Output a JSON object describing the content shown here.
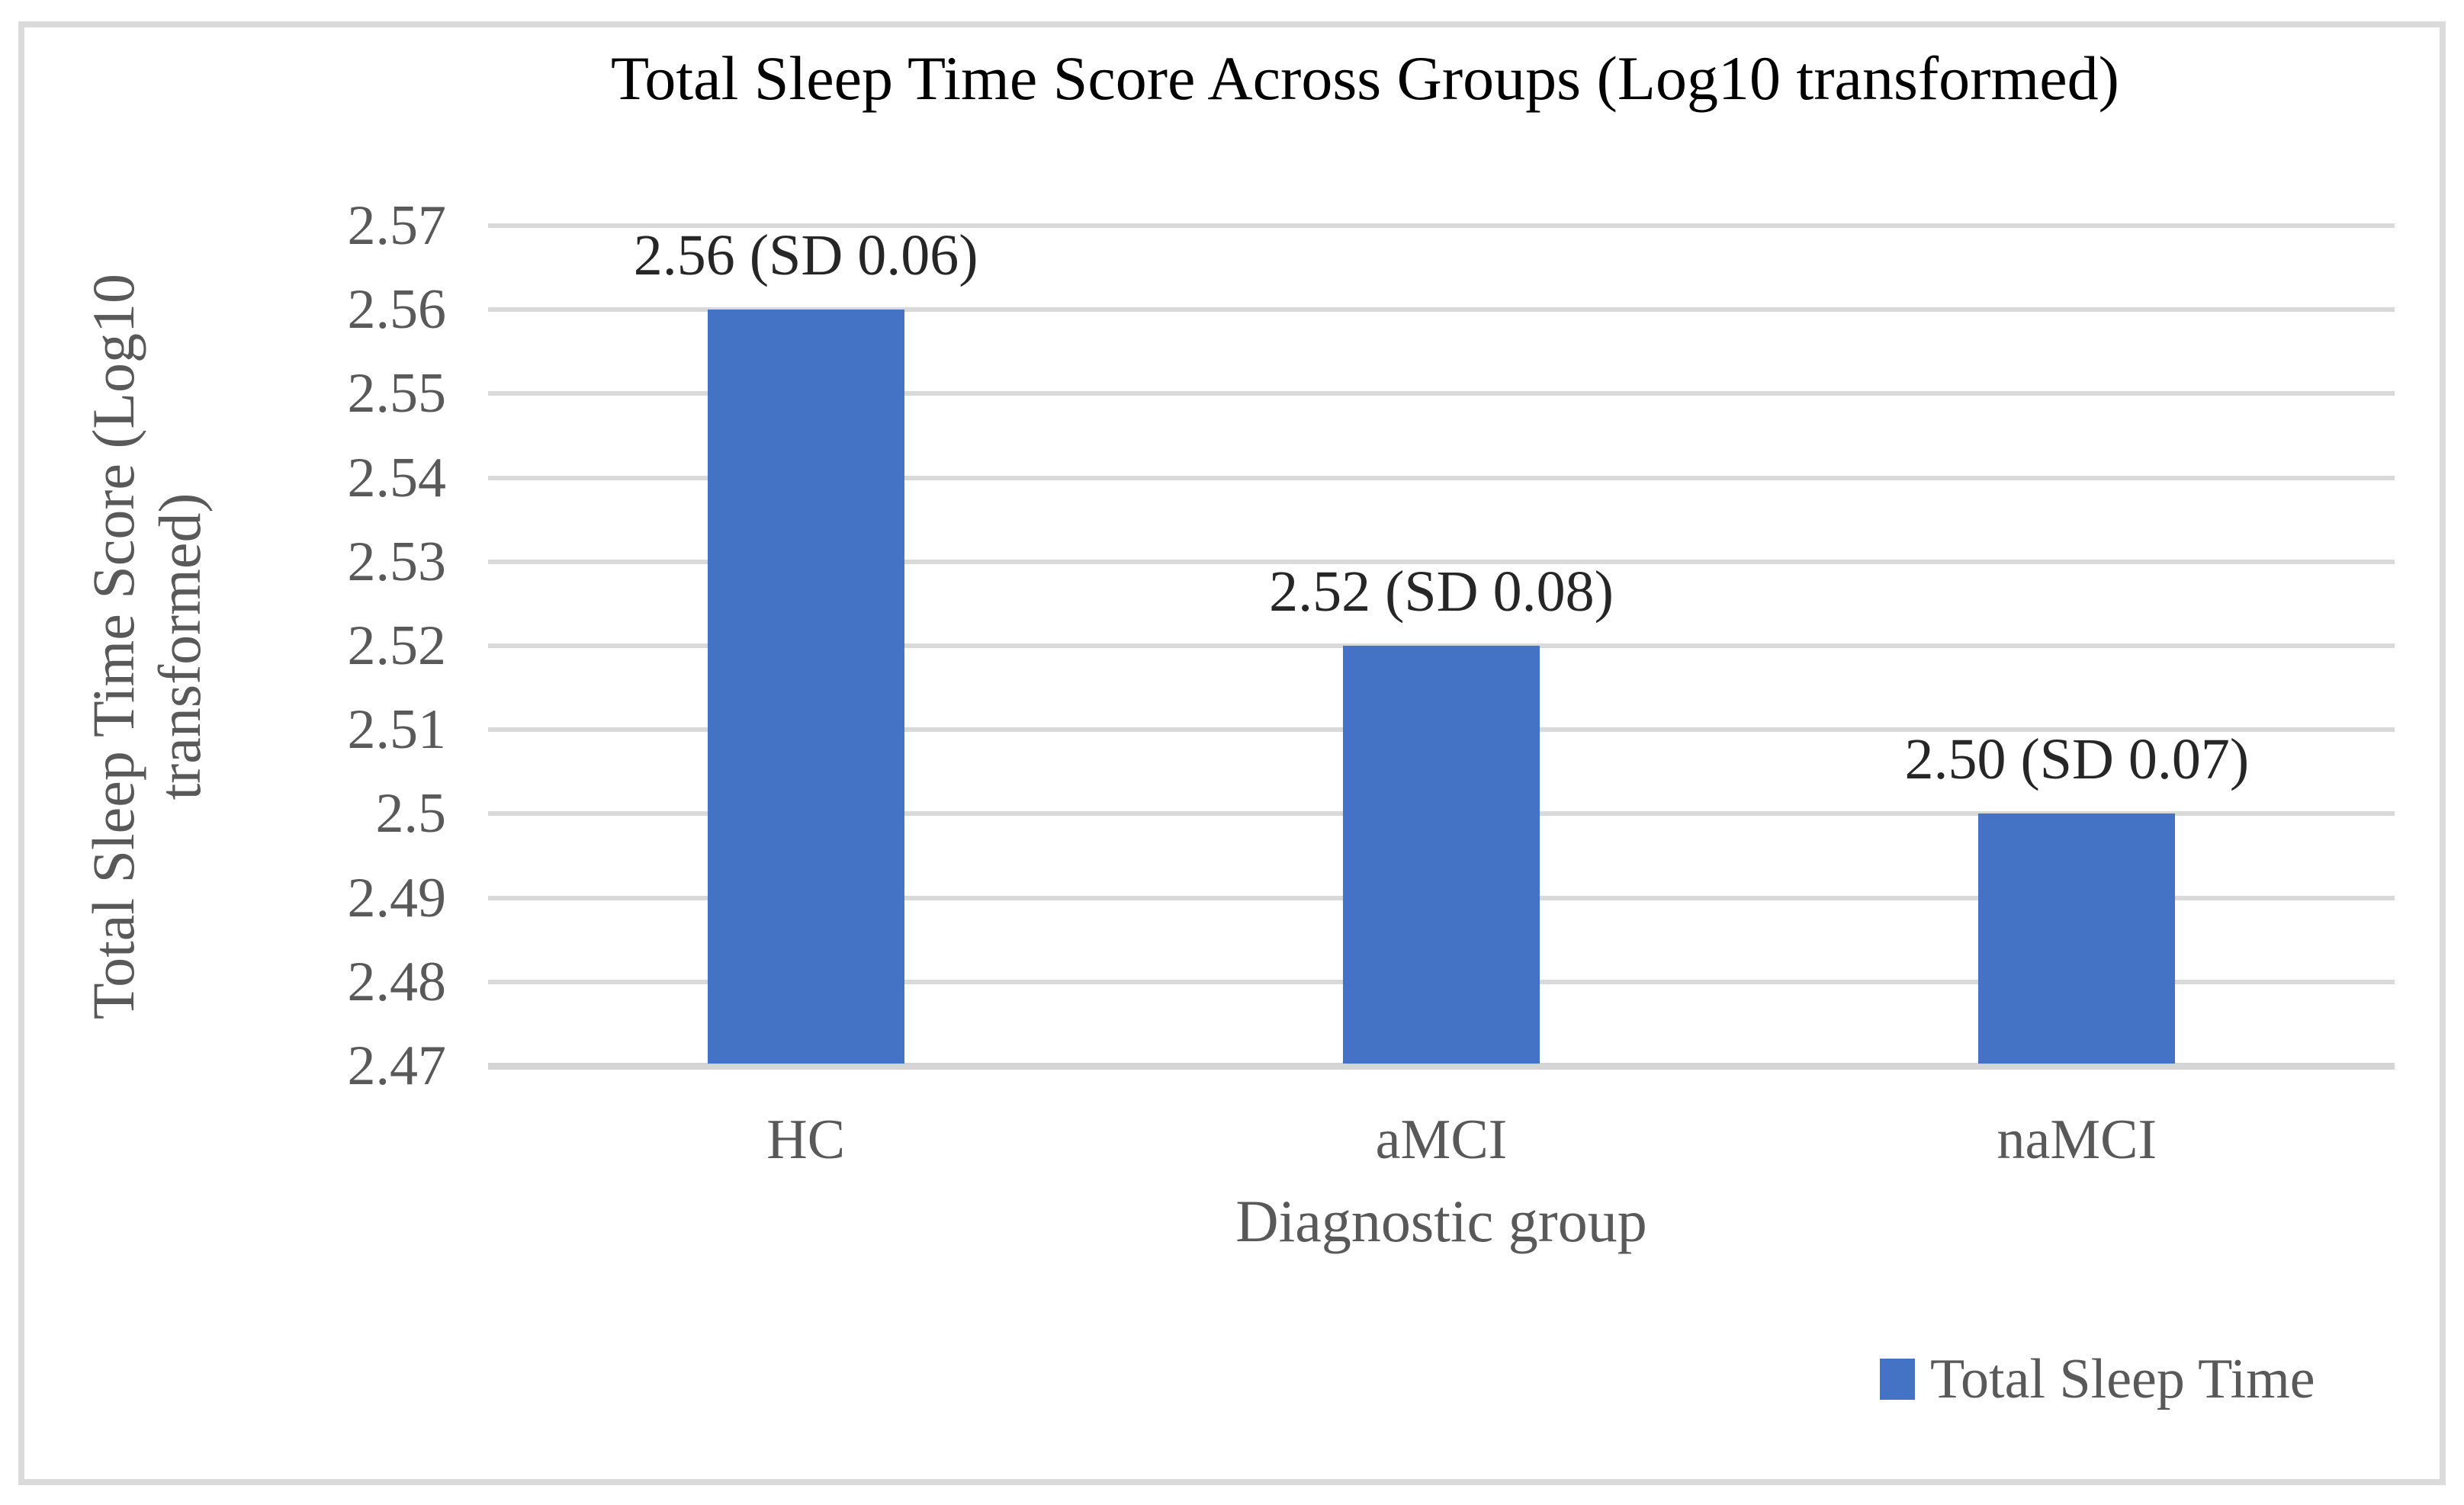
{
  "chart_data": {
    "type": "bar",
    "title": "Total Sleep Time Score Across Groups (Log10 transformed)",
    "xlabel": "Diagnostic group",
    "ylabel": "Total Sleep Time Score (Log10 transformed)",
    "ylabel_lines": [
      "Total Sleep Time Score (Log10",
      "transformed)"
    ],
    "categories": [
      "HC",
      "aMCI",
      "naMCI"
    ],
    "series": [
      {
        "name": "Total Sleep Time",
        "values": [
          2.56,
          2.52,
          2.5
        ],
        "sd": [
          0.06,
          0.08,
          0.07
        ],
        "data_labels": [
          "2.56 (SD 0.06)",
          "2.52 (SD 0.08)",
          "2.50 (SD 0.07)"
        ],
        "color": "#4472C4"
      }
    ],
    "ylim": [
      2.47,
      2.57
    ],
    "ytick_interval": 0.01,
    "yticks": [
      "2.57",
      "2.56",
      "2.55",
      "2.54",
      "2.53",
      "2.52",
      "2.51",
      "2.5",
      "2.49",
      "2.48",
      "2.47"
    ],
    "grid": true,
    "gridline_color": "#D9D9D9",
    "bar_baseline": 2.47,
    "legend": {
      "position": "bottom-right",
      "entries": [
        {
          "label": "Total Sleep Time",
          "swatch_color": "#4472C4"
        }
      ]
    }
  },
  "colors": {
    "background": "#FFFFFF",
    "frame_border": "#DBDBDB",
    "title_text": "#000000",
    "axis_text": "#595959",
    "data_label_text": "#262626",
    "bar_fill": "#4472C4",
    "gridline": "#D9D9D9"
  }
}
